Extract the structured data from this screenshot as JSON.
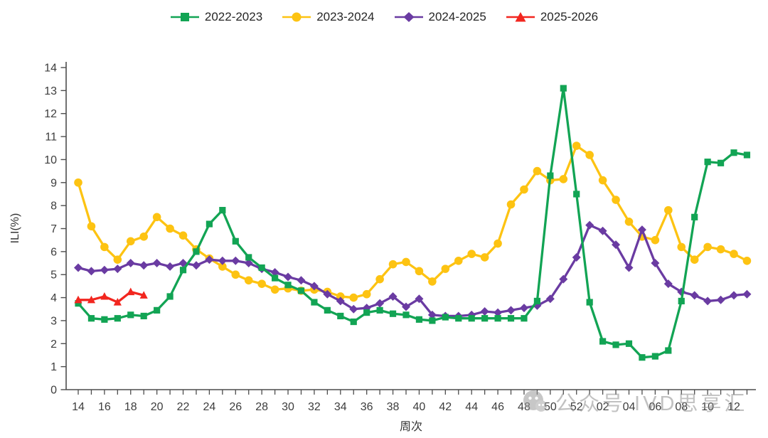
{
  "watermark": {
    "icon": "wechat-icon",
    "text": "公众号 IVD思享汇",
    "color": "#8f8f8f"
  },
  "chart_data": {
    "type": "line",
    "title": "",
    "xlabel": "周次",
    "ylabel": "ILI(%)",
    "ylim": [
      0,
      14
    ],
    "ytick_step": 1,
    "grid": false,
    "legend_position": "top-center",
    "x_label_every": 2,
    "categories": [
      "14",
      "15",
      "16",
      "17",
      "18",
      "19",
      "20",
      "21",
      "22",
      "23",
      "24",
      "25",
      "26",
      "27",
      "28",
      "29",
      "30",
      "31",
      "32",
      "33",
      "34",
      "35",
      "36",
      "37",
      "38",
      "39",
      "40",
      "41",
      "42",
      "43",
      "44",
      "45",
      "46",
      "47",
      "48",
      "49",
      "50",
      "51",
      "52",
      "01",
      "02",
      "03",
      "04",
      "05",
      "06",
      "07",
      "08",
      "09",
      "10",
      "11",
      "12",
      "13"
    ],
    "series": [
      {
        "name": "2023-2024",
        "color": "#fdc312",
        "marker": "circle",
        "values": [
          9.0,
          7.1,
          6.2,
          5.65,
          6.45,
          6.65,
          7.5,
          7.0,
          6.7,
          6.1,
          5.7,
          5.35,
          5.0,
          4.75,
          4.6,
          4.35,
          4.4,
          4.3,
          4.35,
          4.25,
          4.05,
          4.0,
          4.15,
          4.8,
          5.45,
          5.55,
          5.15,
          4.7,
          5.25,
          5.6,
          5.9,
          5.75,
          6.35,
          8.05,
          8.7,
          9.5,
          9.1,
          9.15,
          10.6,
          10.2,
          9.1,
          8.25,
          7.3,
          6.65,
          6.5,
          7.8,
          6.2,
          5.65,
          6.2,
          6.1,
          5.9,
          5.6
        ]
      },
      {
        "name": "2024-2025",
        "color": "#6a3ba2",
        "marker": "diamond",
        "values": [
          5.3,
          5.15,
          5.2,
          5.25,
          5.5,
          5.4,
          5.5,
          5.35,
          5.5,
          5.4,
          5.65,
          5.6,
          5.6,
          5.5,
          5.25,
          5.1,
          4.9,
          4.75,
          4.5,
          4.15,
          3.85,
          3.5,
          3.55,
          3.75,
          4.05,
          3.6,
          3.95,
          3.25,
          3.2,
          3.2,
          3.25,
          3.4,
          3.35,
          3.45,
          3.55,
          3.65,
          3.95,
          4.8,
          5.75,
          7.15,
          6.9,
          6.3,
          5.3,
          6.95,
          5.5,
          4.6,
          4.25,
          4.1,
          3.85,
          3.9,
          4.1,
          4.15
        ]
      },
      {
        "name": "2022-2023",
        "color": "#12a454",
        "marker": "square",
        "values": [
          3.75,
          3.1,
          3.05,
          3.1,
          3.25,
          3.2,
          3.45,
          4.05,
          5.2,
          6.0,
          7.2,
          7.8,
          6.45,
          5.75,
          5.3,
          4.85,
          4.55,
          4.3,
          3.8,
          3.45,
          3.2,
          2.95,
          3.35,
          3.45,
          3.3,
          3.25,
          3.05,
          3.0,
          3.15,
          3.1,
          3.1,
          3.1,
          3.1,
          3.1,
          3.1,
          3.85,
          9.3,
          13.1,
          8.5,
          3.8,
          2.1,
          1.95,
          2.0,
          1.4,
          1.45,
          1.7,
          3.85,
          7.5,
          9.9,
          9.85,
          10.3,
          10.2
        ]
      },
      {
        "name": "2025-2026",
        "color": "#f2261f",
        "marker": "triangle",
        "values": [
          3.9,
          3.9,
          4.05,
          3.8,
          4.25,
          4.1,
          null,
          null,
          null,
          null,
          null,
          null,
          null,
          null,
          null,
          null,
          null,
          null,
          null,
          null,
          null,
          null,
          null,
          null,
          null,
          null,
          null,
          null,
          null,
          null,
          null,
          null,
          null,
          null,
          null,
          null,
          null,
          null,
          null,
          null,
          null,
          null,
          null,
          null,
          null,
          null,
          null,
          null,
          null,
          null,
          null,
          null
        ]
      }
    ],
    "legend_order": [
      "2022-2023",
      "2023-2024",
      "2024-2025",
      "2025-2026"
    ]
  }
}
